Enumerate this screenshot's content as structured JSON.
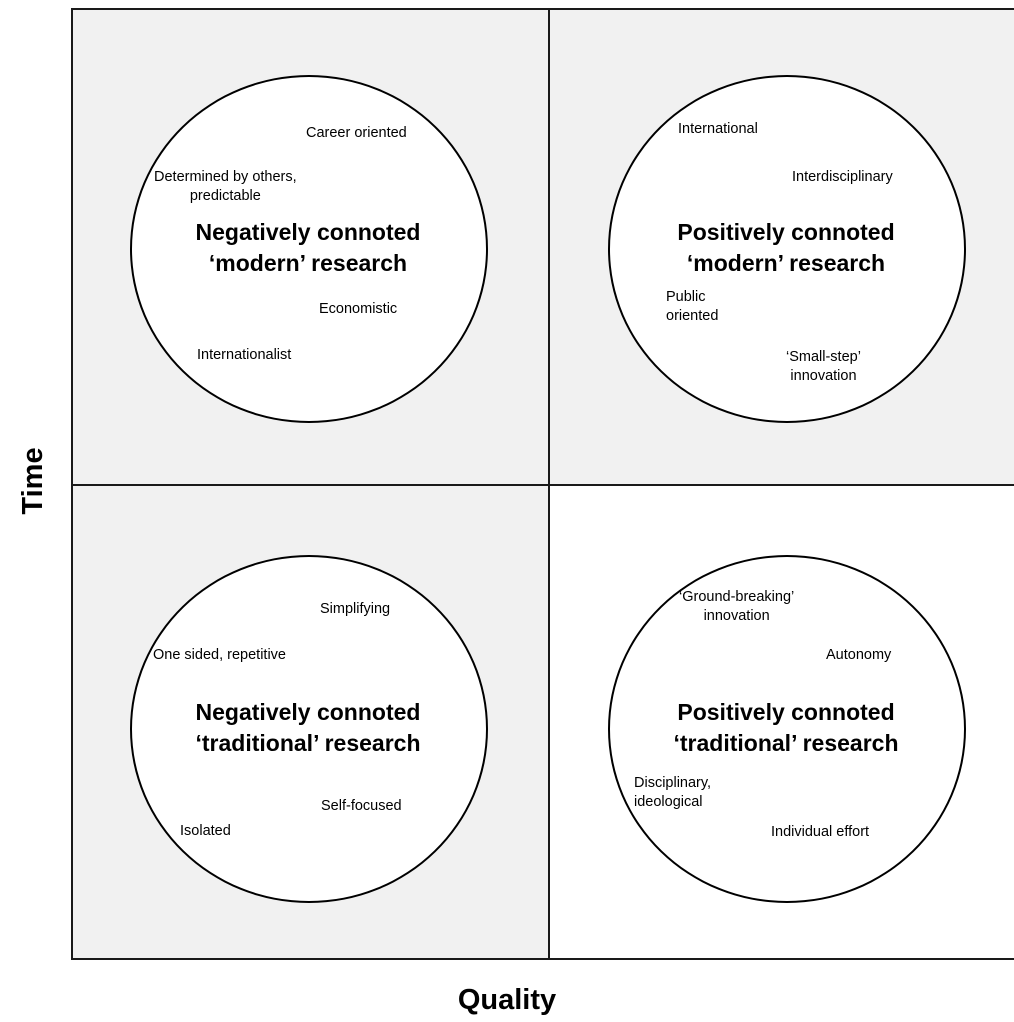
{
  "axes": {
    "x_label": "Quality",
    "y_label": "Time"
  },
  "colors": {
    "shaded_quadrant": "#f1f1f1",
    "plain_quadrant": "#ffffff",
    "line": "#000000"
  },
  "quadrants": {
    "top_left": {
      "title_line1": "Negatively connoted",
      "title_line2": "‘modern’ research",
      "attributes": {
        "career": "Career oriented",
        "determined_line1": "Determined by others,",
        "determined_line2": "predictable",
        "economistic": "Economistic",
        "internationalist": "Internationalist"
      }
    },
    "top_right": {
      "title_line1": "Positively connoted",
      "title_line2": "‘modern’ research",
      "attributes": {
        "international": "International",
        "interdisciplinary": "Interdisciplinary",
        "public_line1": "Public",
        "public_line2": "oriented",
        "small_step_line1": "‘Small-step’",
        "small_step_line2": "innovation"
      }
    },
    "bottom_left": {
      "title_line1": "Negatively connoted",
      "title_line2": "‘traditional’ research",
      "attributes": {
        "simplifying": "Simplifying",
        "one_sided": "One sided, repetitive",
        "self_focused": "Self-focused",
        "isolated": "Isolated"
      }
    },
    "bottom_right": {
      "title_line1": "Positively connoted",
      "title_line2": "‘traditional’ research",
      "attributes": {
        "ground_breaking_line1": "‘Ground-breaking’",
        "ground_breaking_line2": "innovation",
        "autonomy": "Autonomy",
        "disciplinary_line1": "Disciplinary,",
        "disciplinary_line2": "ideological",
        "individual_effort": "Individual effort"
      }
    }
  }
}
